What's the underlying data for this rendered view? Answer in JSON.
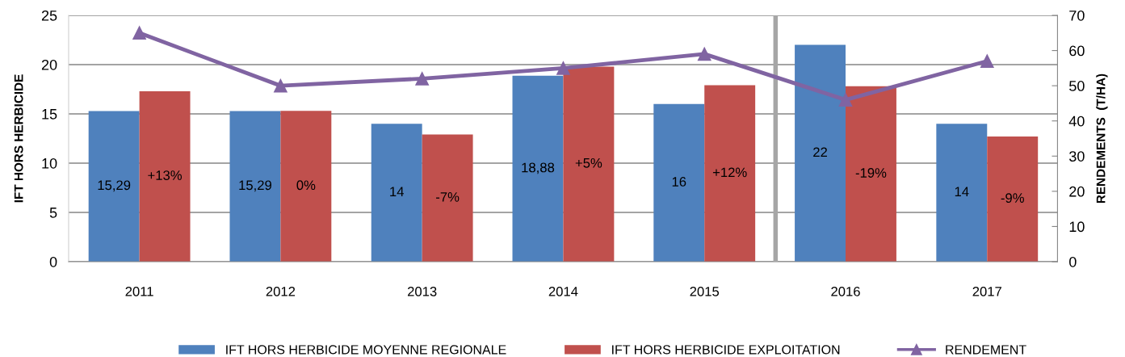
{
  "chart_data": {
    "type": "bar",
    "x": [
      "2011",
      "2012",
      "2013",
      "2014",
      "2015",
      "2016",
      "2017"
    ],
    "xlim": [
      "2010-07-02",
      "2017-07-02"
    ],
    "xticks": [
      "2011",
      "2012",
      "2013",
      "2014",
      "2015",
      "2016",
      "2017"
    ],
    "ylabel": "IFT HORS HERBICIDE",
    "y2label": "RENDEMENTS  (T/HA)",
    "ylim": [
      0,
      25
    ],
    "yticks": [
      0,
      5,
      10,
      15,
      20,
      25
    ],
    "y2lim": [
      0,
      70
    ],
    "y2ticks": [
      0,
      10,
      20,
      30,
      40,
      50,
      60,
      70
    ],
    "grid": "y",
    "legend": "bottom",
    "series": [
      {
        "name": "IFT HORS HERBICIDE MOYENNE REGIONALE",
        "color": "#4f81bd",
        "values": [
          15.29,
          15.29,
          14,
          18.88,
          16,
          22,
          14
        ],
        "value_labels": [
          "15,29",
          "15,29",
          "14",
          "18,88",
          "16",
          "22",
          "14"
        ]
      },
      {
        "name": "IFT HORS HERBICIDE EXPLOITATION",
        "color": "#c0504d",
        "values": [
          17.3,
          15.3,
          12.9,
          19.8,
          17.9,
          17.8,
          12.7
        ]
      },
      {
        "name": "RENDEMENT",
        "type": "line",
        "axis": "y2",
        "color": "#8064a2",
        "marker": "triangle",
        "values": [
          65,
          50,
          52,
          55,
          59,
          46,
          57
        ]
      }
    ],
    "ref_lines": [
      {
        "axis": "x",
        "value": "2015-07-04",
        "color": "#a6a6a6"
      }
    ],
    "annotations": [
      "+13%",
      "0%",
      "-7%",
      "+5%",
      "+12%",
      "-19%",
      "-9%"
    ]
  }
}
